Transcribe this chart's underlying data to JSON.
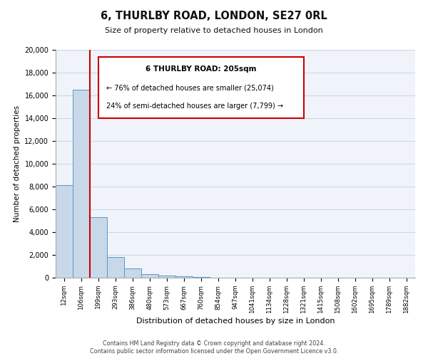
{
  "title": "6, THURLBY ROAD, LONDON, SE27 0RL",
  "subtitle": "Size of property relative to detached houses in London",
  "xlabel": "Distribution of detached houses by size in London",
  "ylabel": "Number of detached properties",
  "bin_labels": [
    "12sqm",
    "106sqm",
    "199sqm",
    "293sqm",
    "386sqm",
    "480sqm",
    "573sqm",
    "667sqm",
    "760sqm",
    "854sqm",
    "947sqm",
    "1041sqm",
    "1134sqm",
    "1228sqm",
    "1321sqm",
    "1415sqm",
    "1508sqm",
    "1602sqm",
    "1695sqm",
    "1789sqm",
    "1882sqm"
  ],
  "bin_values": [
    8100,
    16500,
    5300,
    1800,
    800,
    300,
    200,
    100,
    50,
    0,
    0,
    0,
    0,
    0,
    0,
    0,
    0,
    0,
    0,
    0,
    0
  ],
  "bar_color": "#c8d8e8",
  "bar_edge_color": "#5599cc",
  "property_bin_index": 2,
  "red_line_color": "#cc0000",
  "annotation_box_color": "#ffffff",
  "annotation_box_edge_color": "#cc0000",
  "annotation_title": "6 THURLBY ROAD: 205sqm",
  "annotation_line1": "← 76% of detached houses are smaller (25,074)",
  "annotation_line2": "24% of semi-detached houses are larger (7,799) →",
  "ylim": [
    0,
    20000
  ],
  "yticks": [
    0,
    2000,
    4000,
    6000,
    8000,
    10000,
    12000,
    14000,
    16000,
    18000,
    20000
  ],
  "footer_line1": "Contains HM Land Registry data © Crown copyright and database right 2024.",
  "footer_line2": "Contains public sector information licensed under the Open Government Licence v3.0.",
  "bg_color": "#f0f4fa",
  "grid_color": "#c8d8e8"
}
